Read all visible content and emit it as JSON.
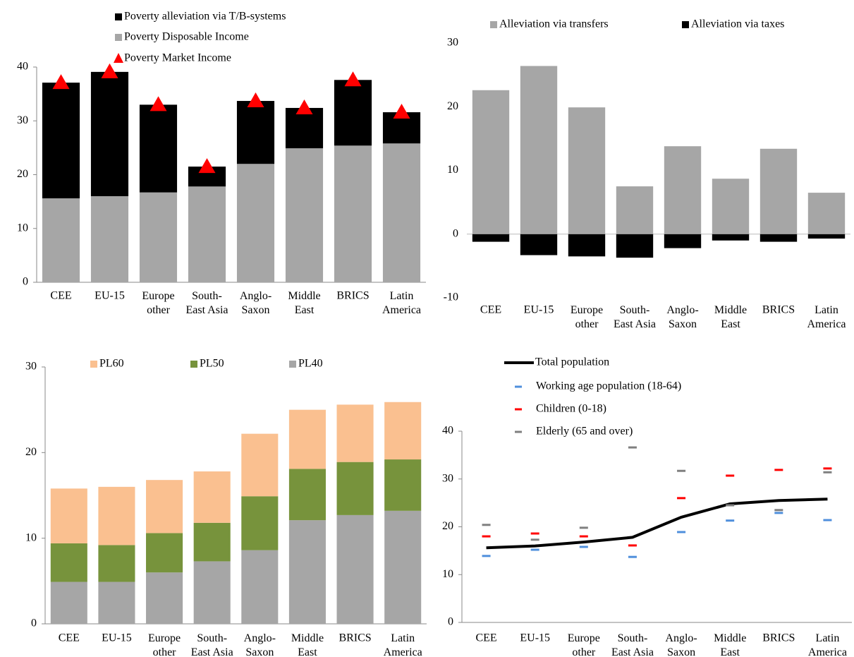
{
  "chart_data": [
    {
      "type": "bar",
      "stacked": true,
      "categories": [
        "CEE",
        "EU-15",
        "Europe\nother",
        "South-\nEast Asia",
        "Anglo-\nSaxon",
        "Middle\nEast",
        "BRICS",
        "Latin\nAmerica"
      ],
      "series": [
        {
          "name": "Poverty alleviation via T/B-systems",
          "type": "bar",
          "color": "#000000",
          "values": [
            21.5,
            23.1,
            16.3,
            3.7,
            11.7,
            7.5,
            12.2,
            5.8
          ]
        },
        {
          "name": "Poverty Disposable Income",
          "type": "bar",
          "color": "#a6a6a6",
          "values": [
            15.6,
            16.0,
            16.7,
            17.8,
            22.0,
            24.9,
            25.4,
            25.8
          ]
        },
        {
          "name": "Poverty Market Income",
          "type": "marker",
          "marker": "triangle",
          "color": "#ff0000",
          "values": [
            37.1,
            39.1,
            33.0,
            21.5,
            33.7,
            32.4,
            37.6,
            31.6
          ]
        }
      ],
      "ylim": [
        0,
        40
      ],
      "yticks": [
        0,
        10,
        20,
        30,
        40
      ]
    },
    {
      "type": "bar",
      "stacked": true,
      "categories": [
        "CEE",
        "EU-15",
        "Europe\nother",
        "South-\nEast Asia",
        "Anglo-\nSaxon",
        "Middle\nEast",
        "BRICS",
        "Latin\nAmerica"
      ],
      "series": [
        {
          "name": "Alleviation via transfers",
          "type": "bar",
          "color": "#a6a6a6",
          "values": [
            22.6,
            26.4,
            19.9,
            7.5,
            13.8,
            8.7,
            13.4,
            6.5
          ]
        },
        {
          "name": "Alleviation via taxes",
          "type": "bar",
          "color": "#000000",
          "values": [
            -1.2,
            -3.3,
            -3.5,
            -3.7,
            -2.2,
            -1.0,
            -1.2,
            -0.7
          ]
        }
      ],
      "ylim": [
        -10,
        30
      ],
      "yticks": [
        -10,
        0,
        10,
        20,
        30
      ]
    },
    {
      "type": "bar",
      "stacked": true,
      "categories": [
        "CEE",
        "EU-15",
        "Europe\nother",
        "South-\nEast Asia",
        "Anglo-\nSaxon",
        "Middle\nEast",
        "BRICS",
        "Latin\nAmerica"
      ],
      "series": [
        {
          "name": "PL60",
          "type": "bar",
          "color": "#fac090",
          "values": [
            6.4,
            6.8,
            6.2,
            6.0,
            7.3,
            6.9,
            6.7,
            6.7
          ]
        },
        {
          "name": "PL50",
          "type": "bar",
          "color": "#77933c",
          "values": [
            4.5,
            4.3,
            4.6,
            4.5,
            6.3,
            6.0,
            6.2,
            6.0
          ]
        },
        {
          "name": "PL40",
          "type": "bar",
          "color": "#a6a6a6",
          "values": [
            4.9,
            4.9,
            6.0,
            7.3,
            8.6,
            12.1,
            12.7,
            13.2
          ]
        }
      ],
      "ylim": [
        0,
        30
      ],
      "yticks": [
        0,
        10,
        20,
        30
      ]
    },
    {
      "type": "line",
      "categories": [
        "CEE",
        "EU-15",
        "Europe\nother",
        "South-\nEast Asia",
        "Anglo-\nSaxon",
        "Middle\nEast",
        "BRICS",
        "Latin\nAmerica"
      ],
      "series": [
        {
          "name": "Total population",
          "type": "line",
          "color": "#000000",
          "values": [
            15.6,
            16.0,
            16.8,
            17.8,
            22.0,
            24.8,
            25.5,
            25.8
          ]
        },
        {
          "name": "Working age population (18-64)",
          "type": "marker",
          "marker": "dash",
          "color": "#4f8fdc",
          "values": [
            13.9,
            15.2,
            15.8,
            13.7,
            18.9,
            21.3,
            22.9,
            21.4
          ]
        },
        {
          "name": "Children (0-18)",
          "type": "marker",
          "marker": "dash",
          "color": "#ff0000",
          "values": [
            18.0,
            18.6,
            18.0,
            16.1,
            26.0,
            30.7,
            31.9,
            32.2
          ]
        },
        {
          "name": "Elderly (65 and over)",
          "type": "marker",
          "marker": "dash",
          "color": "#7f7f7f",
          "values": [
            20.4,
            17.3,
            19.8,
            36.6,
            31.7,
            24.5,
            23.5,
            31.4
          ]
        }
      ],
      "ylim": [
        0,
        40
      ],
      "yticks": [
        0,
        10,
        20,
        30,
        40
      ]
    }
  ]
}
